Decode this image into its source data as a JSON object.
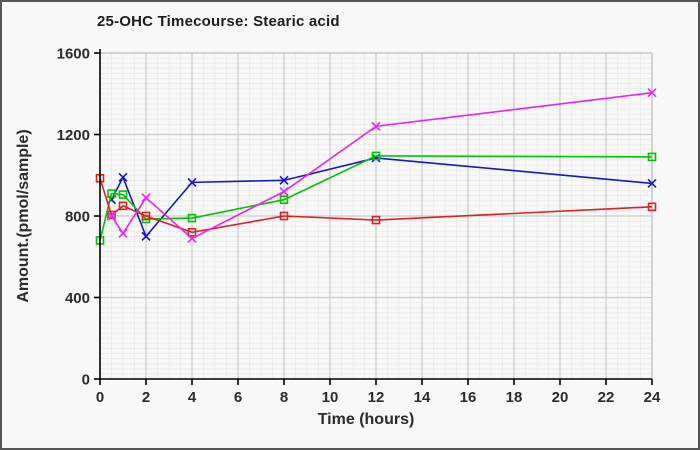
{
  "title": "25-OHC Timecourse: Stearic acid",
  "colors": {
    "background": "#f8f8f8",
    "border": "#565656",
    "grid_minor": "#ececec",
    "grid_major": "#c9c9c9",
    "axis": "#000000",
    "text": "#2b2b2b"
  },
  "chart_data": {
    "type": "line",
    "title": "25-OHC Timecourse: Stearic acid",
    "xlabel": "Time (hours)",
    "ylabel": "Amount.(pmol/sample)",
    "xlim": [
      0,
      24
    ],
    "ylim": [
      0,
      1600
    ],
    "x_ticks": [
      0,
      2,
      4,
      6,
      8,
      10,
      12,
      14,
      16,
      18,
      20,
      22,
      24
    ],
    "y_ticks": [
      0,
      400,
      800,
      1200,
      1600
    ],
    "minor_x_step": 0.5,
    "minor_y_step": 25,
    "grid": "on",
    "legend": "none",
    "series": [
      {
        "name": "series-blue",
        "color": "#1616cc",
        "marker": "x",
        "x": [
          0.5,
          1,
          2,
          4,
          8,
          12,
          24
        ],
        "y": [
          880,
          990,
          700,
          965,
          975,
          1085,
          960
        ]
      },
      {
        "name": "series-green",
        "color": "#00c400",
        "marker": "square",
        "x": [
          0,
          0.5,
          1,
          2,
          4,
          8,
          12,
          24
        ],
        "y": [
          680,
          910,
          905,
          785,
          790,
          880,
          1095,
          1090
        ]
      },
      {
        "name": "series-red",
        "color": "#dd2222",
        "marker": "square",
        "x": [
          0,
          0.5,
          1,
          2,
          4,
          8,
          12,
          24
        ],
        "y": [
          985,
          805,
          850,
          800,
          720,
          800,
          780,
          845
        ]
      },
      {
        "name": "series-magenta",
        "color": "#ee22ee",
        "marker": "x",
        "x": [
          0.5,
          1,
          2,
          4,
          8,
          12,
          24
        ],
        "y": [
          800,
          715,
          890,
          690,
          920,
          1240,
          1405
        ]
      }
    ]
  }
}
